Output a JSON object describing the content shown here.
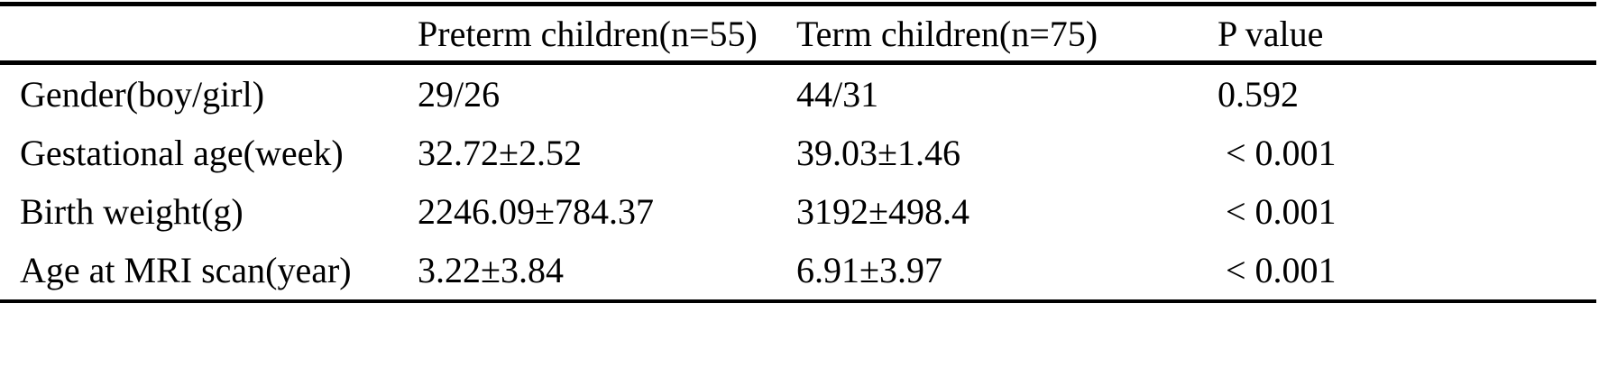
{
  "table": {
    "columns": [
      "",
      "Preterm children(n=55)",
      "Term children(n=75)",
      "P value"
    ],
    "rows": [
      {
        "label": "Gender(boy/girl)",
        "preterm": "29/26",
        "term": "44/31",
        "p": "0.592"
      },
      {
        "label": "Gestational age(week)",
        "preterm": "32.72±2.52",
        "term": "39.03±1.46",
        "p": "< 0.001"
      },
      {
        "label": "Birth weight(g)",
        "preterm": "2246.09±784.37",
        "term": "3192±498.4",
        "p": "< 0.001"
      },
      {
        "label": "Age at MRI scan(year)",
        "preterm": "3.22±3.84",
        "term": "6.91±3.97",
        "p": "< 0.001"
      }
    ],
    "rule_color": "#000000",
    "text_color": "#000000",
    "background_color": "#ffffff"
  }
}
